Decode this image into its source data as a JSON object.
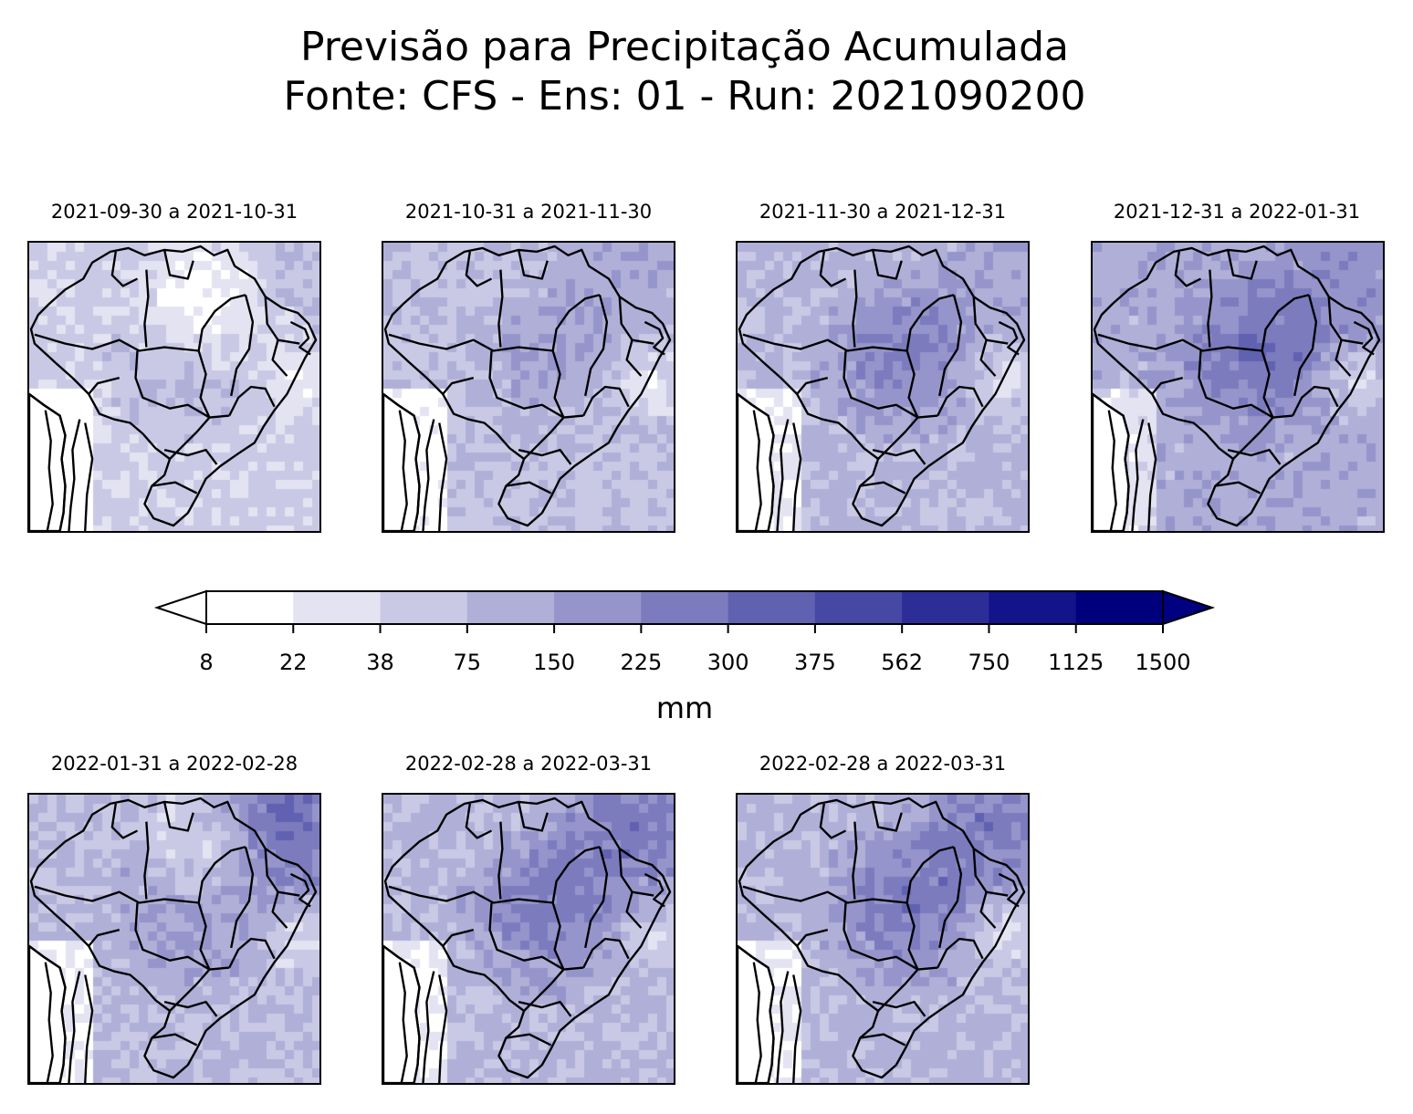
{
  "title": {
    "line1": "Previsão para Precipitação Acumulada",
    "line2": "Fonte: CFS - Ens: 01 - Run: 2021090200"
  },
  "panels": [
    {
      "period": "2021-09-30 a 2021-10-31",
      "intensity": 0.3,
      "dry_nw": true,
      "wet_center": 0.25,
      "wet_ne": 0.15,
      "seed": 11
    },
    {
      "period": "2021-10-31 a 2021-11-30",
      "intensity": 0.38,
      "dry_nw": false,
      "wet_center": 0.35,
      "wet_ne": 0.25,
      "seed": 23
    },
    {
      "period": "2021-11-30 a 2021-12-31",
      "intensity": 0.45,
      "dry_nw": false,
      "wet_center": 0.55,
      "wet_ne": 0.15,
      "seed": 37
    },
    {
      "period": "2021-12-31 a 2022-01-31",
      "intensity": 0.52,
      "dry_nw": false,
      "wet_center": 0.6,
      "wet_ne": 0.3,
      "seed": 41
    },
    {
      "period": "2022-01-31 a 2022-02-28",
      "intensity": 0.42,
      "dry_nw": true,
      "wet_center": 0.5,
      "wet_ne": 0.75,
      "seed": 53
    },
    {
      "period": "2022-02-28 a 2022-03-31",
      "intensity": 0.45,
      "dry_nw": false,
      "wet_center": 0.6,
      "wet_ne": 0.55,
      "seed": 67
    },
    {
      "period": "2022-02-28 a 2022-03-31",
      "intensity": 0.45,
      "dry_nw": false,
      "wet_center": 0.6,
      "wet_ne": 0.55,
      "seed": 79
    }
  ],
  "colorbar": {
    "ticks": [
      "8",
      "22",
      "38",
      "75",
      "150",
      "225",
      "300",
      "375",
      "562",
      "750",
      "1125",
      "1500"
    ],
    "colors": [
      "#ffffff",
      "#e3e3f2",
      "#c9c9e5",
      "#afafd8",
      "#9595cb",
      "#7b7bbe",
      "#6161b1",
      "#4747a4",
      "#2d2d97",
      "#13138a",
      "#00007d"
    ],
    "under_color": "#ffffff",
    "over_color": "#000080",
    "unit": "mm"
  }
}
